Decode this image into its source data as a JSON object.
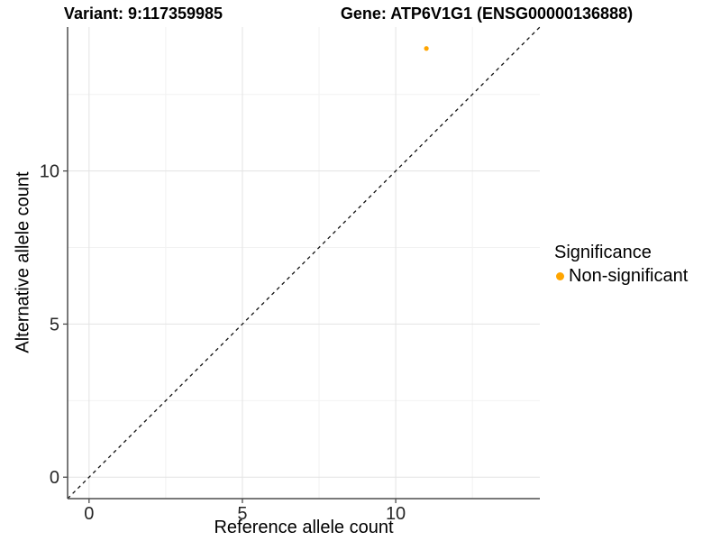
{
  "chart_data": {
    "type": "scatter",
    "title_left": "Variant: 9:117359985",
    "title_right": "Gene: ATP6V1G1 (ENSG00000136888)",
    "xlabel": "Reference allele count",
    "ylabel": "Alternative allele count",
    "xlim": [
      -0.7,
      14.7
    ],
    "ylim": [
      -0.7,
      14.7
    ],
    "x_major_ticks": [
      0,
      5,
      10
    ],
    "y_major_ticks": [
      0,
      5,
      10
    ],
    "x_minor_ticks": [
      2.5,
      7.5,
      12.5
    ],
    "y_minor_ticks": [
      2.5,
      7.5,
      12.5
    ],
    "grid": "major-minor",
    "identity_line": {
      "type": "dashed",
      "slope": 1,
      "intercept": 0,
      "color": "#111111"
    },
    "points": [
      {
        "x": 11,
        "y": 14,
        "series": "Non-significant",
        "color": "#FFA500"
      }
    ],
    "legend": {
      "position": "right",
      "title": "Significance",
      "items": [
        {
          "label": "Non-significant",
          "color": "#FFA500",
          "marker": "dot"
        }
      ]
    },
    "colors": {
      "background": "#ffffff",
      "grid_major": "#e3e3e3",
      "grid_minor": "#f2f2f2",
      "axis_line": "#4d4d4d",
      "tick_label": "#262626",
      "point": "#FFA500"
    }
  }
}
